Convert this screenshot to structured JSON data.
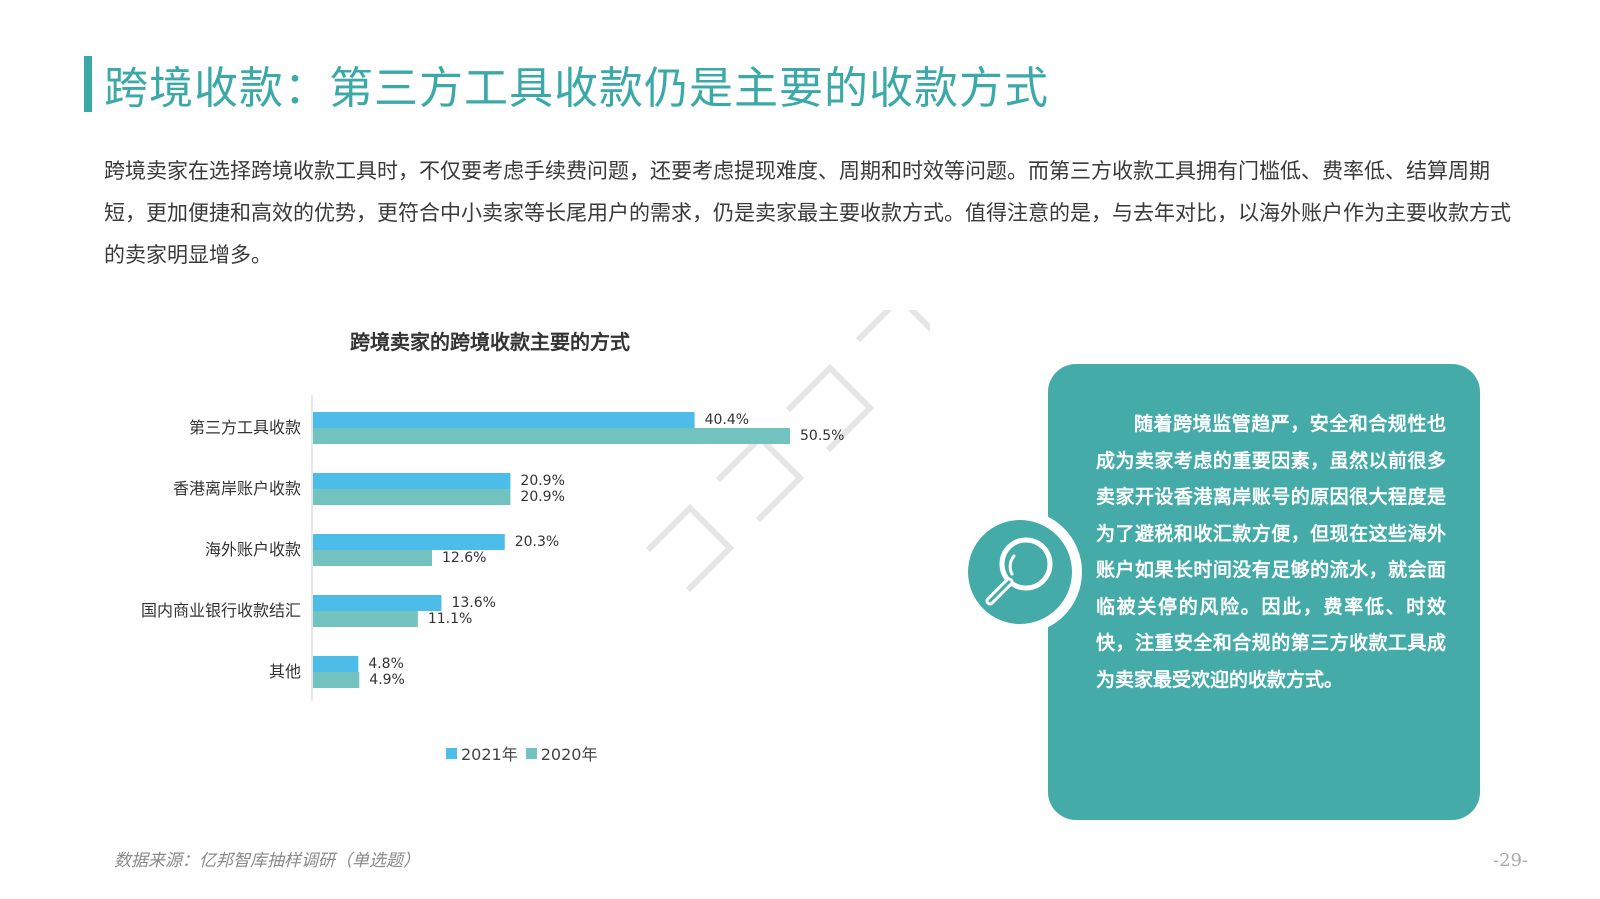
{
  "page": {
    "title": "跨境收款：第三方工具收款仍是主要的收款方式",
    "intro": "跨境卖家在选择跨境收款工具时，不仅要考虑手续费问题，还要考虑提现难度、周期和时效等问题。而第三方收款工具拥有门槛低、费率低、结算周期短，更加便捷和高效的优势，更符合中小卖家等长尾用户的需求，仍是卖家最主要收款方式。值得注意的是，与去年对比，以海外账户作为主要收款方式的卖家明显增多。",
    "source": "数据来源：亿邦智库抽样调研（单选题）",
    "page_number": "-29-"
  },
  "card": {
    "icon": "magnifier-icon",
    "text": "随着跨境监管趋严，安全和合规性也成为卖家考虑的重要因素，虽然以前很多卖家开设香港离岸账号的原因很大程度是为了避税和收汇款方便，但现在这些海外账户如果长时间没有足够的流水，就会面临被关停的风险。因此，费率低、时效快，注重安全和合规的第三方收款工具成为卖家最受欢迎的收款方式。"
  },
  "colors": {
    "accent": "#3aa9a8",
    "card": "#44aba8",
    "series_2021": "#4bbde8",
    "series_2020": "#72c2c0"
  },
  "chart_data": {
    "type": "bar",
    "orientation": "horizontal",
    "title": "跨境卖家的跨境收款主要的方式",
    "categories": [
      "第三方工具收款",
      "香港离岸账户收款",
      "海外账户收款",
      "国内商业银行收款结汇",
      "其他"
    ],
    "series": [
      {
        "name": "2021年",
        "values": [
          40.4,
          20.9,
          20.3,
          13.6,
          4.8
        ],
        "labels": [
          "40.4%",
          "20.9%",
          "20.3%",
          "13.6%",
          "4.8%"
        ],
        "color": "#4bbde8"
      },
      {
        "name": "2020年",
        "values": [
          50.5,
          20.9,
          12.6,
          11.1,
          4.9
        ],
        "labels": [
          "50.5%",
          "20.9%",
          "12.6%",
          "11.1%",
          "4.9%"
        ],
        "color": "#72c2c0"
      }
    ],
    "unit": "%",
    "xlim": [
      0,
      50.5
    ],
    "legend": "bottom",
    "grid": false,
    "xaxis_visible": false
  }
}
